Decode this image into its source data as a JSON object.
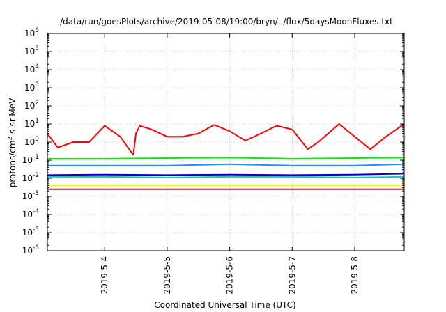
{
  "chart_data": {
    "type": "line",
    "title": "/data/run/goesPlots/archive/2019-05-08/19:00/bryn/../flux/5daysMoonFluxes.txt",
    "xlabel": "Coordinated Universal Time (UTC)",
    "ylabel_parts": {
      "base": "protons/cm",
      "sup": "2",
      "rest": "-s-sr-MeV"
    },
    "y_scale": "log",
    "ylim": [
      1e-06,
      1000000.0
    ],
    "y_ticks": [
      {
        "base": "10",
        "exp": "-6",
        "value": 1e-06
      },
      {
        "base": "10",
        "exp": "-5",
        "value": 1e-05
      },
      {
        "base": "10",
        "exp": "-4",
        "value": 0.0001
      },
      {
        "base": "10",
        "exp": "-3",
        "value": 0.001
      },
      {
        "base": "10",
        "exp": "-2",
        "value": 0.01
      },
      {
        "base": "10",
        "exp": "-1",
        "value": 0.1
      },
      {
        "base": "10",
        "exp": "0",
        "value": 1
      },
      {
        "base": "10",
        "exp": "1",
        "value": 10
      },
      {
        "base": "10",
        "exp": "2",
        "value": 100
      },
      {
        "base": "10",
        "exp": "3",
        "value": 1000
      },
      {
        "base": "10",
        "exp": "4",
        "value": 10000
      },
      {
        "base": "10",
        "exp": "5",
        "value": 100000
      },
      {
        "base": "10",
        "exp": "6",
        "value": 1000000
      }
    ],
    "xlim": [
      "2019-05-03 02:00",
      "2019-05-08 19:00"
    ],
    "x_ticks": [
      "2019-5-4",
      "2019-5-5",
      "2019-5-6",
      "2019-5-7",
      "2019-5-8"
    ],
    "grid": true,
    "legend": "none",
    "series": [
      {
        "color": "#ff0000",
        "x": [
          "2019-05-03 02:00",
          "2019-05-03 06:00",
          "2019-05-03 12:00",
          "2019-05-03 18:00",
          "2019-05-04 00:00",
          "2019-05-04 06:00",
          "2019-05-04 10:00",
          "2019-05-04 11:00",
          "2019-05-04 12:00",
          "2019-05-04 13:30",
          "2019-05-04 18:00",
          "2019-05-05 00:00",
          "2019-05-05 06:00",
          "2019-05-05 12:00",
          "2019-05-05 18:00",
          "2019-05-06 00:00",
          "2019-05-06 06:00",
          "2019-05-06 12:00",
          "2019-05-06 18:00",
          "2019-05-07 00:00",
          "2019-05-07 06:00",
          "2019-05-07 10:00",
          "2019-05-07 18:00",
          "2019-05-08 00:00",
          "2019-05-08 06:00",
          "2019-05-08 12:00",
          "2019-05-08 19:00"
        ],
        "y": [
          3,
          0.5,
          1,
          1,
          8,
          2,
          0.3,
          0.2,
          3,
          8,
          5,
          2,
          2,
          3,
          9,
          4,
          1.2,
          3,
          8,
          5,
          0.4,
          1,
          10,
          2,
          0.4,
          2,
          10
        ]
      },
      {
        "color": "#00ee00",
        "x": [
          "2019-05-03 02:00",
          "2019-05-04 00:00",
          "2019-05-05 00:00",
          "2019-05-06 00:00",
          "2019-05-07 00:00",
          "2019-05-08 00:00",
          "2019-05-08 19:00"
        ],
        "y": [
          0.12,
          0.12,
          0.13,
          0.14,
          0.12,
          0.13,
          0.14
        ]
      },
      {
        "color": "#1e90ff",
        "x": [
          "2019-05-03 02:00",
          "2019-05-04 00:00",
          "2019-05-05 00:00",
          "2019-05-06 00:00",
          "2019-05-07 00:00",
          "2019-05-08 00:00",
          "2019-05-08 19:00"
        ],
        "y": [
          0.05,
          0.05,
          0.05,
          0.06,
          0.05,
          0.05,
          0.06
        ]
      },
      {
        "color": "#00ced1",
        "x": [
          "2019-05-03 02:00",
          "2019-05-04 00:00",
          "2019-05-05 00:00",
          "2019-05-06 00:00",
          "2019-05-07 00:00",
          "2019-05-08 00:00",
          "2019-05-08 19:00"
        ],
        "y": [
          0.012,
          0.012,
          0.011,
          0.012,
          0.012,
          0.011,
          0.012
        ]
      },
      {
        "color": "#0000cd",
        "x": [
          "2019-05-03 02:00",
          "2019-05-04 00:00",
          "2019-05-05 00:00",
          "2019-05-06 00:00",
          "2019-05-07 00:00",
          "2019-05-08 00:00",
          "2019-05-08 19:00"
        ],
        "y": [
          0.015,
          0.016,
          0.015,
          0.016,
          0.015,
          0.016,
          0.018
        ]
      },
      {
        "color": "#ffff00",
        "x": [
          "2019-05-03 02:00",
          "2019-05-04 00:00",
          "2019-05-05 00:00",
          "2019-05-06 00:00",
          "2019-05-07 00:00",
          "2019-05-08 00:00",
          "2019-05-08 19:00"
        ],
        "y": [
          0.004,
          0.004,
          0.004,
          0.004,
          0.004,
          0.004,
          0.004
        ]
      },
      {
        "color": "#8b2252",
        "x": [
          "2019-05-03 02:00",
          "2019-05-03 12:00",
          "2019-05-04 00:00",
          "2019-05-05 00:00",
          "2019-05-05 12:00",
          "2019-05-06 00:00",
          "2019-05-07 00:00",
          "2019-05-07 12:00",
          "2019-05-08 00:00",
          "2019-05-08 19:00"
        ],
        "y": [
          0.0025,
          0.0025,
          0.0025,
          0.0025,
          0.0025,
          0.0025,
          0.0025,
          0.0025,
          0.0025,
          0.0025
        ]
      }
    ]
  }
}
